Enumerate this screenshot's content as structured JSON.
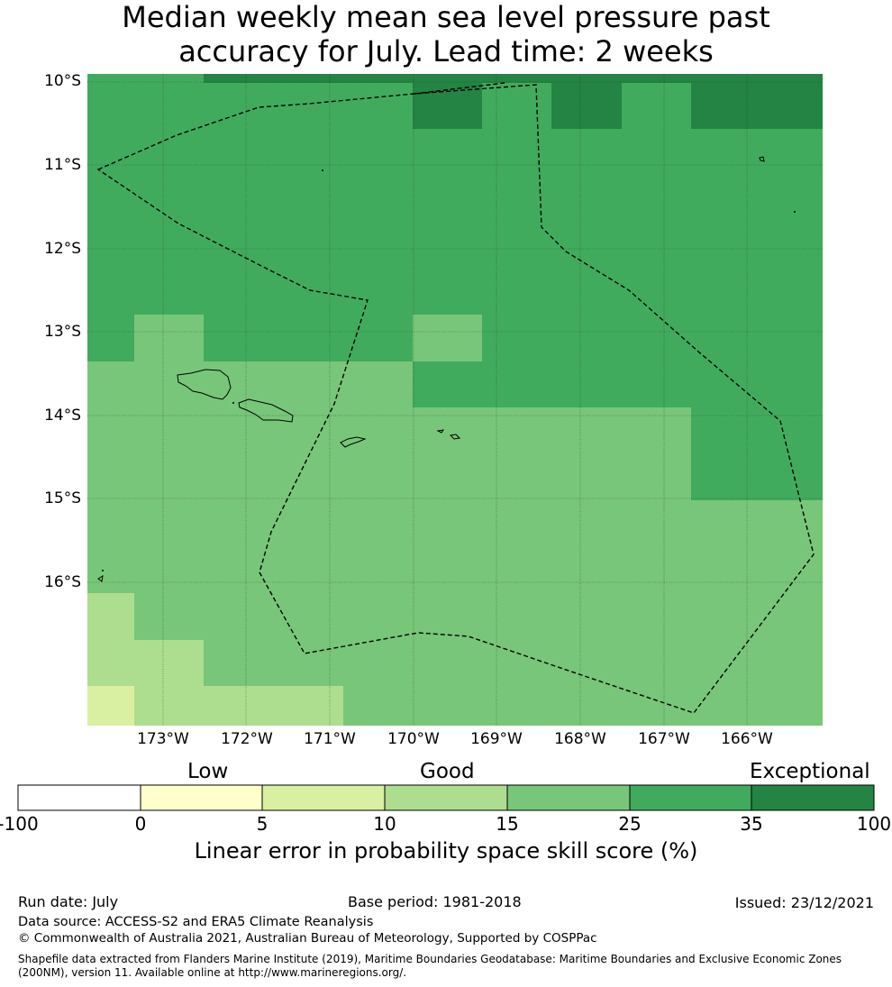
{
  "title": {
    "line1": "Median weekly mean sea level pressure past",
    "line2": "accuracy for July. Lead time: 2 weeks"
  },
  "map": {
    "lat_labels": [
      "10°S",
      "11°S",
      "12°S",
      "13°S",
      "14°S",
      "15°S",
      "16°S"
    ],
    "lon_labels": [
      "173°W",
      "172°W",
      "171°W",
      "170°W",
      "169°W",
      "168°W",
      "167°W",
      "166°W"
    ],
    "colors": {
      "skill_5_10": "#d9f0a3",
      "skill_10_15": "#addd8e",
      "skill_15_25": "#78c679",
      "skill_25_35": "#41ab5d",
      "skill_35_100": "#238443"
    }
  },
  "colorbar": {
    "categories": [
      "Low",
      "Good",
      "Exceptional"
    ],
    "ticks": [
      "-100",
      "0",
      "5",
      "10",
      "15",
      "25",
      "35",
      "100"
    ],
    "colors": [
      "#ffffff",
      "#ffffcc",
      "#d9f0a3",
      "#addd8e",
      "#78c679",
      "#41ab5d",
      "#238443"
    ],
    "label": "Linear error in probability space skill score (%)"
  },
  "footer": {
    "run_date": "Run date: July",
    "base_period": "Base period: 1981-2018",
    "issued": "Issued: 23/12/2021",
    "data_source": "Data source: ACCESS-S2 and ERA5 Climate Reanalysis",
    "copyright": "© Commonwealth of Australia 2021, Australian Bureau of Meteorology, Supported by COSPPac",
    "shapefile": "Shapefile data extracted from Flanders Marine Institute (2019), Maritime Boundaries Geodatabase: Maritime Boundaries and Exclusive Economic Zones (200NM), version 11. Available online at http://www.marineregions.org/."
  }
}
